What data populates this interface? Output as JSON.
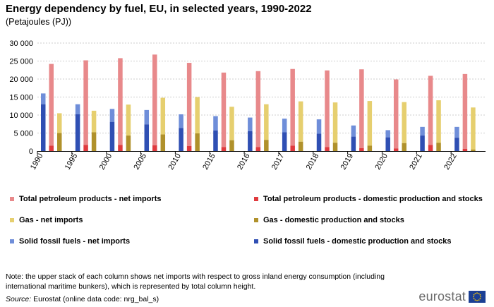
{
  "title": "Energy dependency by fuel, EU, in selected years, 1990-2022",
  "subtitle": "(Petajoules (PJ))",
  "colors": {
    "petroleum_imports": "#E8898B",
    "petroleum_domestic": "#E03A3E",
    "gas_imports": "#E6CF6F",
    "gas_domestic": "#B0912B",
    "solid_imports": "#6F8ED9",
    "solid_domestic": "#2F4FB3",
    "grid": "#cccccc",
    "axis": "#000000"
  },
  "legend": [
    {
      "key": "petroleum_imports",
      "label": "Total petroleum products - net imports"
    },
    {
      "key": "petroleum_domestic",
      "label": "Total petroleum products - domestic production and stocks"
    },
    {
      "key": "gas_imports",
      "label": "Gas - net imports"
    },
    {
      "key": "gas_domestic",
      "label": "Gas  - domestic production and stocks"
    },
    {
      "key": "solid_imports",
      "label": "Solid fossil fuels - net imports"
    },
    {
      "key": "solid_domestic",
      "label": "Solid fossil fuels - domestic production and stocks"
    }
  ],
  "chart_data": {
    "type": "bar",
    "stacked": true,
    "categories": [
      "1990",
      "1995",
      "2000",
      "2005",
      "2010",
      "2015",
      "2016",
      "2017",
      "2018",
      "2019",
      "2020",
      "2021",
      "2022"
    ],
    "ylim": [
      0,
      30000
    ],
    "yticks": [
      0,
      5000,
      10000,
      15000,
      20000,
      25000,
      30000
    ],
    "ytick_labels": [
      "0",
      "5 000",
      "10 000",
      "15 000",
      "20 000",
      "25 000",
      "30 000"
    ],
    "grid": true,
    "legend_position": "bottom",
    "groups": [
      {
        "fuel": "solid",
        "domestic": [
          13000,
          10200,
          8100,
          7400,
          6400,
          5700,
          5500,
          5200,
          4800,
          4000,
          3800,
          4300,
          3700
        ],
        "total": [
          16000,
          13000,
          11700,
          11400,
          10200,
          9700,
          9300,
          9000,
          8800,
          7100,
          5800,
          6700,
          6700
        ]
      },
      {
        "fuel": "petroleum",
        "domestic": [
          1500,
          1700,
          1700,
          1600,
          1400,
          1100,
          1100,
          1500,
          1100,
          800,
          700,
          1700,
          600
        ],
        "total": [
          24200,
          25200,
          25800,
          26800,
          24500,
          21800,
          22200,
          22800,
          22400,
          22700,
          19900,
          20900,
          21400
        ]
      },
      {
        "fuel": "gas",
        "domestic": [
          5000,
          5200,
          4300,
          4600,
          4900,
          3000,
          3100,
          2600,
          2300,
          1500,
          2200,
          2300,
          400
        ],
        "total": [
          10500,
          11200,
          12900,
          14800,
          15000,
          12300,
          13000,
          13800,
          13500,
          13900,
          13600,
          14100,
          12100
        ]
      }
    ]
  },
  "note": "Note: the upper stack of each column shows net imports with respect to gross inland energy consumption (including international maritime bunkers), which is represented by total column height.",
  "source_label": "Source:",
  "source_text": " Eurostat (online data code: nrg_bal_s)",
  "logo_text": "eurostat",
  "logo_flag_icon": "eu-flag-icon"
}
